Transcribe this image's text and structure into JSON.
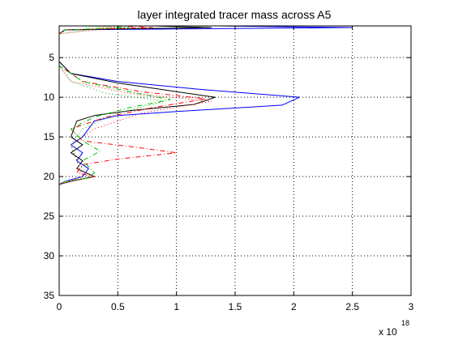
{
  "chart_data": {
    "type": "line",
    "title": "layer integrated tracer mass across A5",
    "xlabel": "",
    "ylabel": "",
    "xlim": [
      0,
      3
    ],
    "ylim": [
      35,
      1
    ],
    "y_reversed": true,
    "x_ticks": [
      0,
      0.5,
      1,
      1.5,
      2,
      2.5,
      3
    ],
    "x_tick_labels": [
      "0",
      "0.5",
      "1",
      "1.5",
      "2",
      "2.5",
      "3"
    ],
    "y_ticks": [
      5,
      10,
      15,
      20,
      25,
      30,
      35
    ],
    "y_tick_labels": [
      "5",
      "10",
      "15",
      "20",
      "25",
      "30",
      "35"
    ],
    "x_multiplier_label": "x 10",
    "x_multiplier_exponent": "18",
    "grid": true,
    "grid_style": "dotted",
    "series": [
      {
        "color": "#0000ff",
        "dash": "",
        "points": [
          [
            1.35,
            1
          ],
          [
            2.5,
            1.2
          ],
          [
            0.05,
            1.5
          ],
          [
            0,
            2
          ],
          [
            0,
            5.5
          ],
          [
            0.1,
            7
          ],
          [
            0.5,
            8
          ],
          [
            1.2,
            9
          ],
          [
            2.05,
            10
          ],
          [
            1.9,
            11
          ],
          [
            1.0,
            11.8
          ],
          [
            0.5,
            12.3
          ],
          [
            0.3,
            13
          ],
          [
            0.25,
            14
          ],
          [
            0.2,
            15
          ],
          [
            0.1,
            16
          ],
          [
            0.2,
            17
          ],
          [
            0.15,
            18
          ],
          [
            0.25,
            19
          ],
          [
            0.2,
            20
          ],
          [
            0.05,
            20.6
          ],
          [
            0,
            21
          ]
        ]
      },
      {
        "color": "#000000",
        "dash": "",
        "points": [
          [
            0.8,
            1
          ],
          [
            1.3,
            1.2
          ],
          [
            0.05,
            1.5
          ],
          [
            0,
            2
          ],
          [
            0,
            5.5
          ],
          [
            0.1,
            7
          ],
          [
            0.5,
            8.2
          ],
          [
            1.0,
            9.3
          ],
          [
            1.33,
            10
          ],
          [
            1.15,
            10.9
          ],
          [
            0.6,
            11.7
          ],
          [
            0.3,
            12.3
          ],
          [
            0.15,
            13
          ],
          [
            0.1,
            15
          ],
          [
            0.2,
            16
          ],
          [
            0.1,
            17
          ],
          [
            0.2,
            18
          ],
          [
            0.15,
            19
          ],
          [
            0.3,
            20
          ],
          [
            0.1,
            20.6
          ],
          [
            0,
            21
          ]
        ]
      },
      {
        "color": "#ff0000",
        "dash": "6,3,1,3",
        "points": [
          [
            0.5,
            1
          ],
          [
            0.8,
            1.2
          ],
          [
            0.05,
            1.5
          ],
          [
            0,
            2
          ],
          [
            0,
            6
          ],
          [
            0.2,
            8
          ],
          [
            0.7,
            9.3
          ],
          [
            1.25,
            10.2
          ],
          [
            0.8,
            11.3
          ],
          [
            0.4,
            12.5
          ],
          [
            0.1,
            14
          ],
          [
            0.2,
            15.5
          ],
          [
            0.6,
            16.2
          ],
          [
            1.0,
            17
          ],
          [
            0.5,
            17.8
          ],
          [
            0.2,
            18.5
          ],
          [
            0.15,
            19.5
          ],
          [
            0.3,
            20
          ],
          [
            0.1,
            20.6
          ],
          [
            0,
            21
          ]
        ]
      },
      {
        "color": "#00c000",
        "dash": "6,3,1,3",
        "points": [
          [
            0.4,
            1
          ],
          [
            0.6,
            1.2
          ],
          [
            0.05,
            1.5
          ],
          [
            0,
            2
          ],
          [
            0,
            6
          ],
          [
            0.2,
            8
          ],
          [
            0.6,
            9.3
          ],
          [
            0.95,
            10.3
          ],
          [
            0.6,
            11.3
          ],
          [
            0.3,
            12.5
          ],
          [
            0.1,
            14
          ],
          [
            0.2,
            15.5
          ],
          [
            0.35,
            16.8
          ],
          [
            0.2,
            18
          ],
          [
            0.3,
            19.5
          ],
          [
            0.25,
            20.2
          ],
          [
            0.05,
            20.6
          ],
          [
            0,
            21
          ]
        ]
      },
      {
        "color": "#ff0000",
        "dash": "1,3",
        "points": [
          [
            0.3,
            1
          ],
          [
            0.5,
            1.2
          ],
          [
            0,
            2
          ],
          [
            0,
            6
          ],
          [
            0.1,
            8
          ],
          [
            0.6,
            9.5
          ],
          [
            1.3,
            10.5
          ],
          [
            0.7,
            12
          ],
          [
            0.3,
            14
          ],
          [
            0.1,
            16
          ],
          [
            0.15,
            18
          ],
          [
            0.2,
            20
          ],
          [
            0,
            21
          ]
        ]
      },
      {
        "color": "#00c000",
        "dash": "1,3",
        "points": [
          [
            0.2,
            1
          ],
          [
            0.4,
            1.2
          ],
          [
            0,
            2
          ],
          [
            0,
            6
          ],
          [
            0.1,
            8
          ],
          [
            0.4,
            9.5
          ],
          [
            0.9,
            10.5
          ],
          [
            0.5,
            12
          ],
          [
            0.2,
            14
          ],
          [
            0.1,
            16
          ],
          [
            0.15,
            18
          ],
          [
            0.25,
            20
          ],
          [
            0,
            21
          ]
        ]
      }
    ]
  }
}
